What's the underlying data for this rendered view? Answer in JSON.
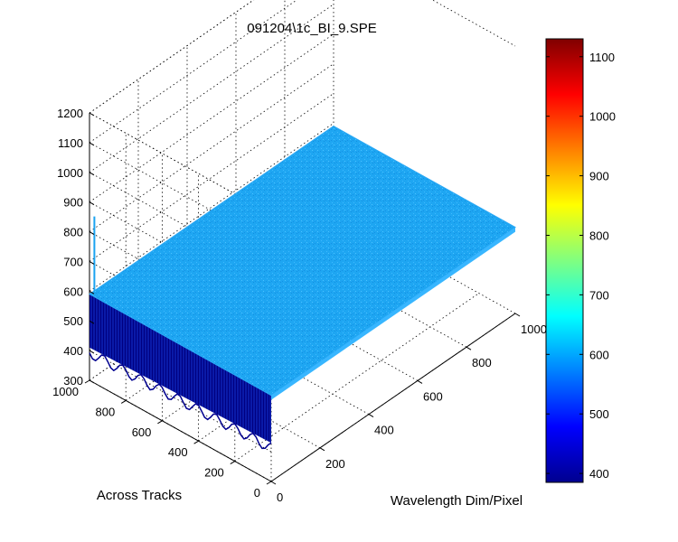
{
  "window": {
    "title": ""
  },
  "chart_data": {
    "type": "surface",
    "title": "091204\\1c_BI_9.SPE",
    "xlabel": "Wavelength Dim/Pixel",
    "ylabel": "Across Tracks",
    "zlabel": "",
    "x_ticks": [
      "0",
      "200",
      "400",
      "600",
      "800",
      "1000"
    ],
    "y_ticks": [
      "0",
      "200",
      "400",
      "600",
      "800",
      "1000"
    ],
    "z_ticks": [
      "300",
      "400",
      "500",
      "600",
      "700",
      "800",
      "900",
      "1000",
      "1100",
      "1200"
    ],
    "xlim": [
      0,
      1000
    ],
    "ylim": [
      0,
      1000
    ],
    "zlim": [
      300,
      1200
    ],
    "grid": true,
    "surface": {
      "typical_level": 590,
      "edge_min_level": 400,
      "spike": {
        "x": 20,
        "y": 1000,
        "z": 840
      }
    },
    "colorbar": {
      "range": [
        385,
        1130
      ],
      "ticks": [
        "400",
        "500",
        "600",
        "700",
        "800",
        "900",
        "1000",
        "1100"
      ],
      "colormap": "jet",
      "colors": [
        "#00008f",
        "#0000ff",
        "#0080ff",
        "#00ffff",
        "#80ff80",
        "#ffff00",
        "#ff8000",
        "#ff0000",
        "#800000"
      ]
    },
    "surface_color": "#1aa3f0",
    "edge_color_dark": "#00008f"
  }
}
